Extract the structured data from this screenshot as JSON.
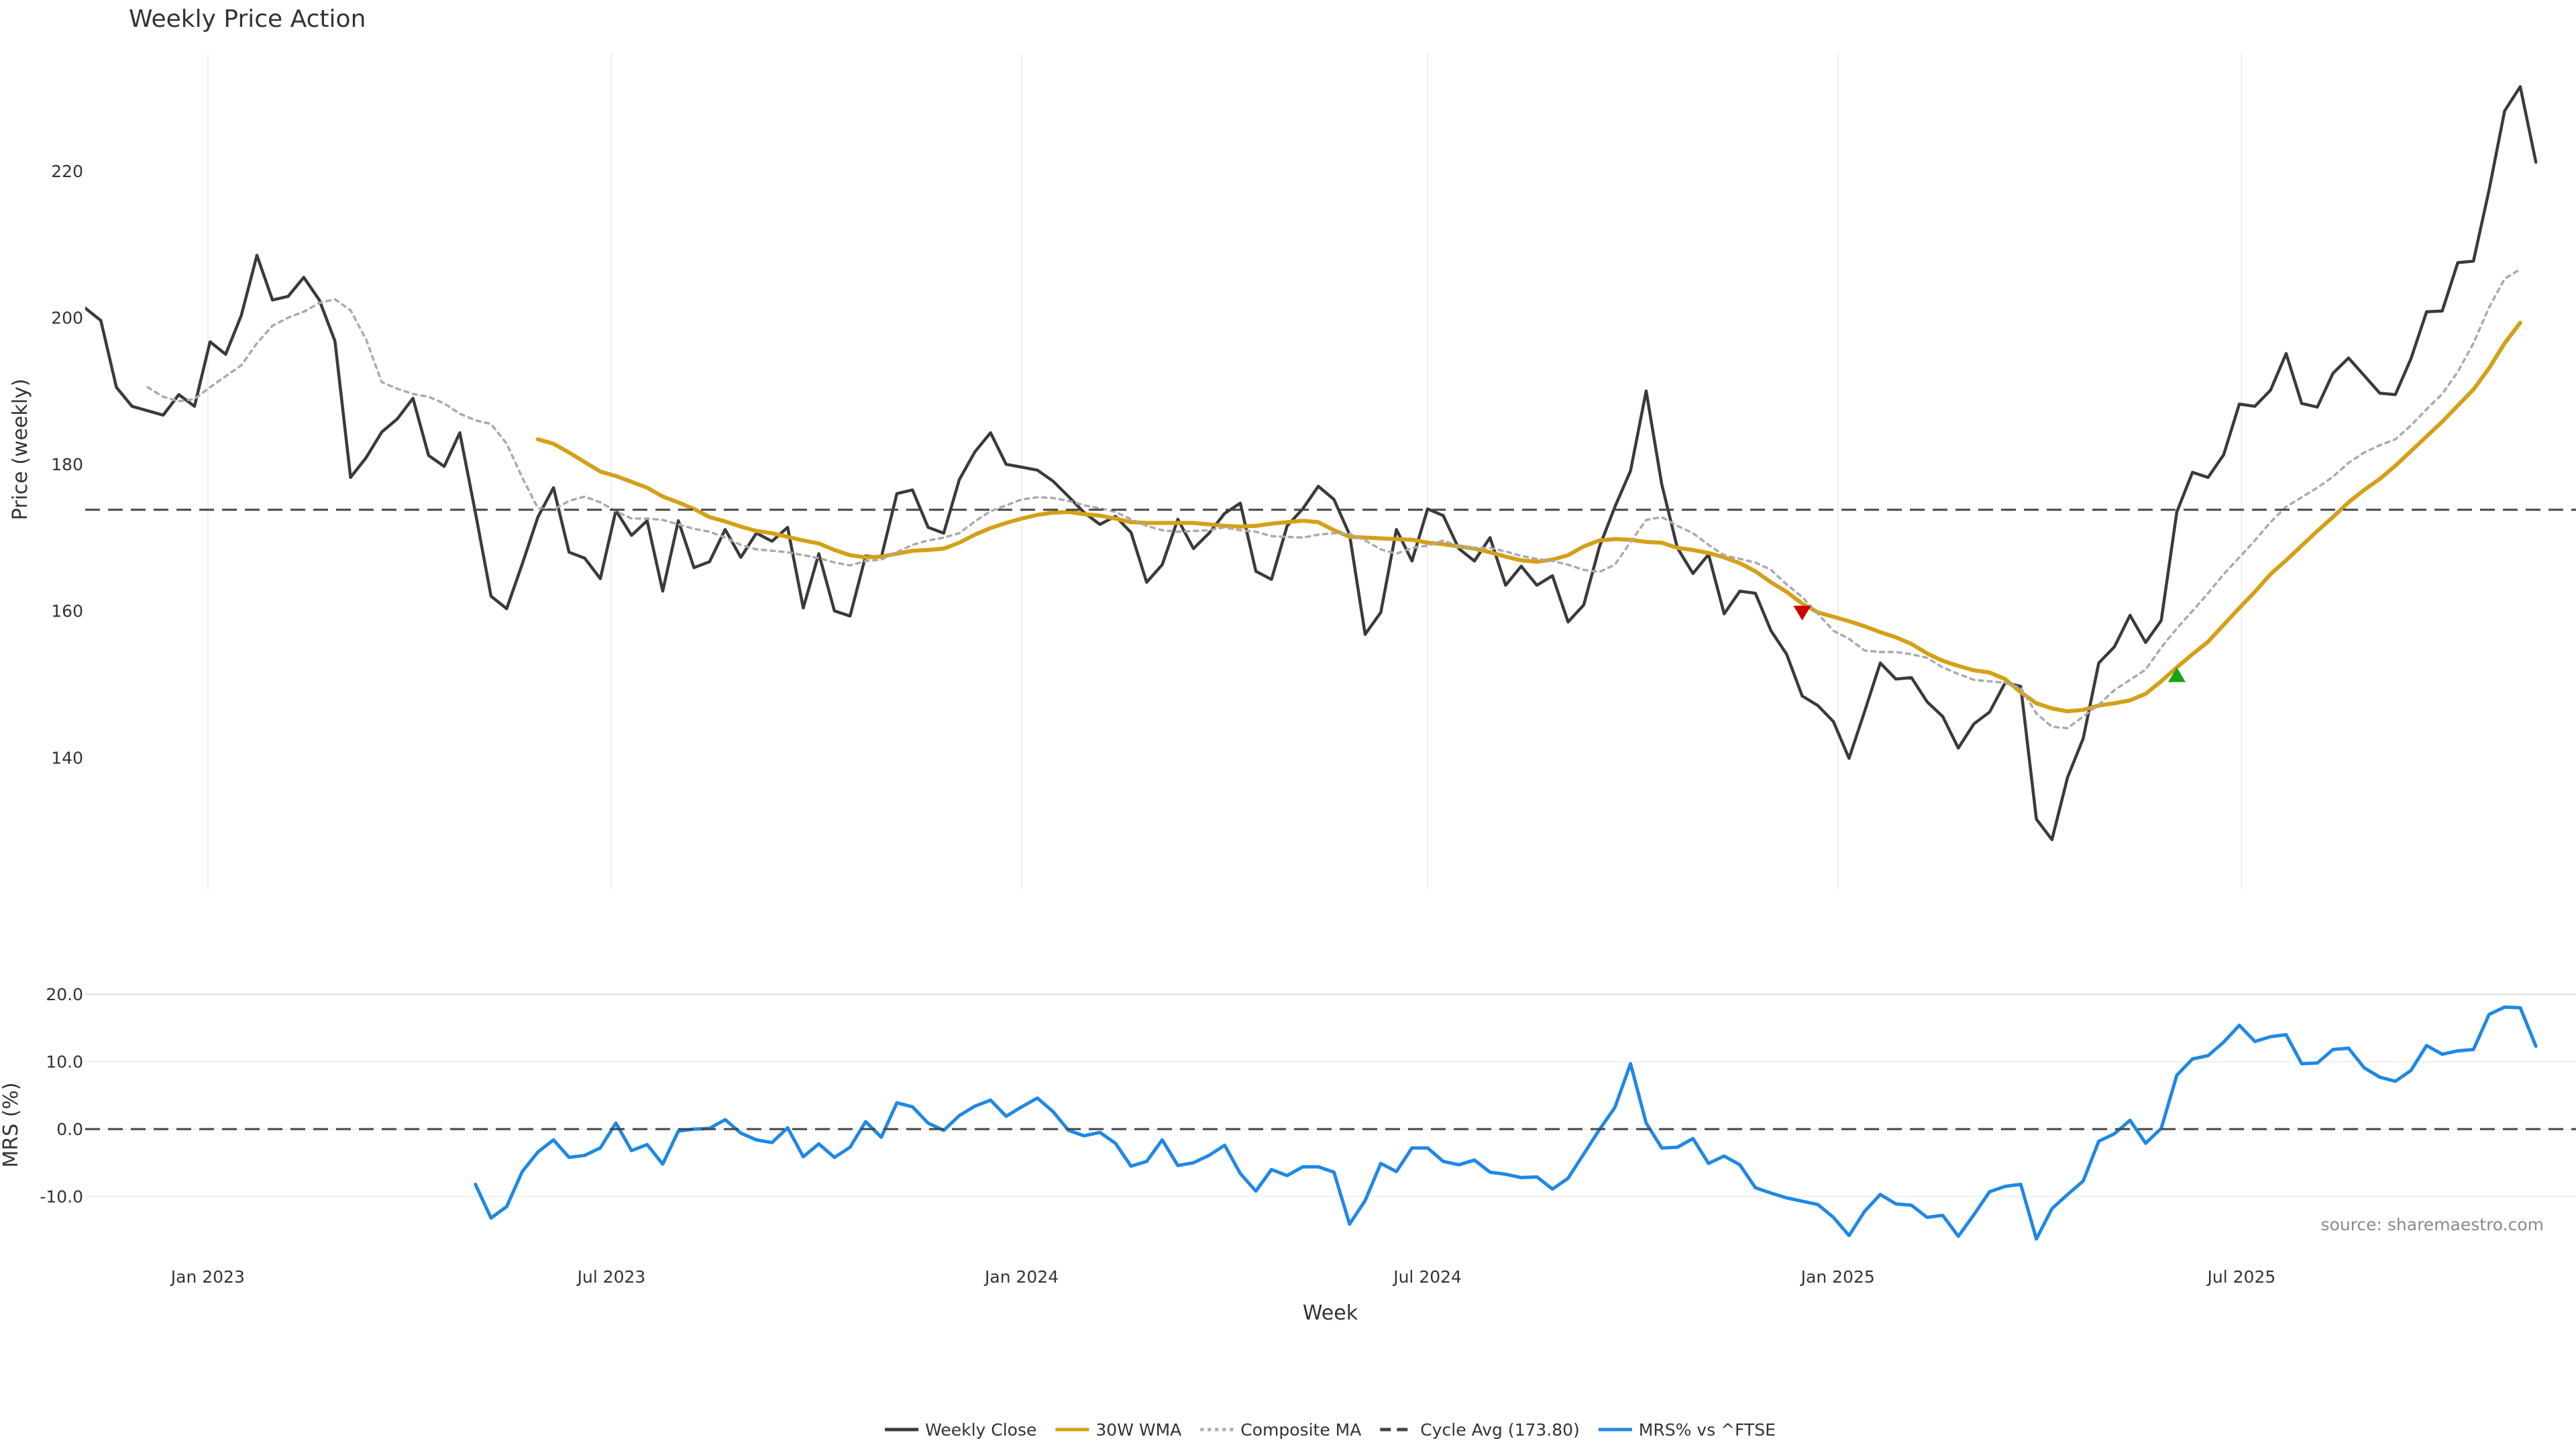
{
  "chart_data": [
    {
      "type": "line",
      "title": "Weekly Price Action",
      "xlabel": "Week",
      "ylabel": "Price (weekly)",
      "xlim": [
        "2022-11-07",
        "2025-11-28"
      ],
      "ylim": [
        122,
        236
      ],
      "yticks": [
        140,
        160,
        180,
        200,
        220
      ],
      "xticks": [
        {
          "date": "2023-01-01",
          "label": "Jan 2023"
        },
        {
          "date": "2023-07-01",
          "label": "Jul 2023"
        },
        {
          "date": "2024-01-01",
          "label": "Jan 2024"
        },
        {
          "date": "2024-07-01",
          "label": "Jul 2024"
        },
        {
          "date": "2025-01-01",
          "label": "Jan 2025"
        },
        {
          "date": "2025-07-01",
          "label": "Jul 2025"
        }
      ],
      "grid": "vertical",
      "start_date": "2022-11-07",
      "interval_days": 7,
      "series": [
        {
          "name": "Weekly Close",
          "color": "#3a3a3a",
          "style": "solid",
          "values": [
            201.3,
            199.6,
            190.5,
            187.9,
            187.3,
            186.7,
            189.5,
            187.9,
            196.7,
            195.0,
            200.3,
            208.5,
            202.4,
            202.9,
            205.5,
            202.4,
            196.8,
            178.2,
            180.9,
            184.4,
            186.2,
            189.0,
            181.2,
            179.7,
            184.3,
            173.4,
            162.0,
            160.3,
            166.4,
            172.8,
            176.8,
            168.0,
            167.2,
            164.4,
            173.7,
            170.3,
            172.3,
            162.7,
            172.3,
            165.9,
            166.7,
            171.1,
            167.3,
            170.6,
            169.5,
            171.4,
            160.4,
            167.8,
            160.0,
            159.3,
            167.5,
            167.3,
            176.0,
            176.5,
            171.4,
            170.6,
            177.9,
            181.7,
            184.3,
            180.0,
            179.6,
            179.2,
            177.7,
            175.6,
            173.4,
            171.8,
            172.9,
            170.7,
            163.9,
            166.3,
            172.5,
            168.5,
            170.6,
            173.3,
            174.7,
            165.4,
            164.3,
            171.6,
            173.9,
            177.0,
            175.2,
            170.4,
            156.8,
            159.8,
            171.1,
            166.8,
            173.9,
            173.0,
            168.5,
            166.8,
            170.0,
            163.5,
            166.1,
            163.5,
            164.8,
            158.5,
            160.8,
            168.7,
            174.2,
            179.1,
            190.0,
            177.3,
            168.6,
            165.1,
            167.7,
            159.6,
            162.7,
            162.4,
            157.3,
            154.1,
            148.4,
            147.1,
            144.9,
            139.9,
            146.3,
            152.9,
            150.7,
            150.9,
            147.6,
            145.6,
            141.3,
            144.6,
            146.2,
            150.2,
            149.7,
            131.6,
            128.8,
            137.3,
            142.6,
            152.9,
            155.1,
            159.4,
            155.7,
            158.7,
            173.5,
            178.9,
            178.2,
            181.3,
            188.2,
            187.9,
            190.1,
            195.1,
            188.3,
            187.8,
            192.4,
            194.5,
            192.1,
            189.7,
            189.5,
            194.4,
            200.8,
            200.9,
            207.5,
            207.7,
            217.4,
            228.2,
            231.5,
            221.2
          ]
        },
        {
          "name": "30W WMA",
          "color": "#d4a017",
          "style": "solid",
          "start_index": 29,
          "values": [
            183.4,
            182.8,
            181.6,
            180.3,
            179.0,
            178.4,
            177.6,
            176.8,
            175.6,
            174.8,
            173.9,
            172.8,
            172.2,
            171.5,
            170.9,
            170.6,
            170.1,
            169.6,
            169.2,
            168.3,
            167.6,
            167.3,
            167.4,
            167.8,
            168.2,
            168.3,
            168.5,
            169.3,
            170.4,
            171.3,
            172.0,
            172.6,
            173.1,
            173.4,
            173.5,
            173.2,
            173.0,
            172.6,
            172.1,
            172.0,
            172.0,
            172.0,
            172.0,
            171.8,
            171.6,
            171.5,
            171.6,
            171.9,
            172.1,
            172.3,
            172.1,
            171.0,
            170.1,
            170.0,
            169.9,
            169.8,
            169.7,
            169.3,
            169.1,
            168.8,
            168.5,
            168.0,
            167.4,
            166.9,
            166.7,
            167.0,
            167.6,
            168.8,
            169.6,
            169.8,
            169.7,
            169.4,
            169.3,
            168.6,
            168.3,
            167.9,
            167.3,
            166.5,
            165.4,
            163.9,
            162.6,
            161.0,
            159.8,
            159.2,
            158.6,
            157.9,
            157.1,
            156.4,
            155.5,
            154.2,
            153.2,
            152.5,
            151.9,
            151.6,
            150.7,
            148.9,
            147.4,
            146.7,
            146.3,
            146.5,
            147.1,
            147.4,
            147.8,
            148.7,
            150.4,
            152.3,
            154.1,
            155.8,
            158.1,
            160.4,
            162.6,
            165.0,
            166.9,
            168.9,
            170.9,
            172.8,
            174.8,
            176.5,
            178.0,
            179.8,
            181.8,
            183.8,
            185.8,
            188.0,
            190.2,
            193.1,
            196.5,
            199.3
          ]
        },
        {
          "name": "Composite MA",
          "color": "#aaaaaa",
          "style": "dotted",
          "start_index": 4,
          "values": [
            190.5,
            189.2,
            188.6,
            188.9,
            190.5,
            192.0,
            193.5,
            196.5,
            198.9,
            200.0,
            200.8,
            202.0,
            202.5,
            201.0,
            197.0,
            191.2,
            190.3,
            189.6,
            189.2,
            188.3,
            186.9,
            186.0,
            185.5,
            182.8,
            178.2,
            174.0,
            173.8,
            175.0,
            175.6,
            174.8,
            173.6,
            172.6,
            172.6,
            172.4,
            171.8,
            171.2,
            170.8,
            170.0,
            169.0,
            168.4,
            168.2,
            168.0,
            167.6,
            167.2,
            166.6,
            166.2,
            166.8,
            167.0,
            168.0,
            169.0,
            169.6,
            170.0,
            170.6,
            172.2,
            173.6,
            174.4,
            175.2,
            175.5,
            175.4,
            175.0,
            174.4,
            174.0,
            173.5,
            172.5,
            171.6,
            171.0,
            170.8,
            170.9,
            171.0,
            171.4,
            171.0,
            170.8,
            170.2,
            170.1,
            170.0,
            170.4,
            170.6,
            170.5,
            169.6,
            168.4,
            167.8,
            168.6,
            168.9,
            169.6,
            168.8,
            168.6,
            168.6,
            168.1,
            167.5,
            167.1,
            166.8,
            166.3,
            165.6,
            165.3,
            166.3,
            169.4,
            172.4,
            172.8,
            171.6,
            170.6,
            169.0,
            167.6,
            167.1,
            166.6,
            165.6,
            163.6,
            161.9,
            159.6,
            157.3,
            156.2,
            154.6,
            154.4,
            154.4,
            154.1,
            153.6,
            152.3,
            151.4,
            150.6,
            150.4,
            150.2,
            149.5,
            146.0,
            144.2,
            144.0,
            145.6,
            147.2,
            149.2,
            150.6,
            152.0,
            155.0,
            157.6,
            160.0,
            162.4,
            165.0,
            167.3,
            169.6,
            172.1,
            174.2,
            175.5,
            176.8,
            178.3,
            180.2,
            181.6,
            182.6,
            183.4,
            185.3,
            187.5,
            189.6,
            192.6,
            196.5,
            201.4,
            205.3,
            206.6
          ]
        },
        {
          "name": "Cycle Avg (173.80)",
          "color": "#444444",
          "style": "dashed",
          "value": 173.8
        }
      ],
      "annotations": [
        {
          "type": "marker",
          "shape": "triangle-down",
          "color": "#cc0000",
          "index": 110,
          "y": 159.7
        },
        {
          "type": "marker",
          "shape": "triangle-up",
          "color": "#16a316",
          "index": 134,
          "y": 151.3
        }
      ]
    },
    {
      "type": "line",
      "title": "",
      "xlabel": "Week",
      "ylabel": "MRS (%)",
      "ylim": [
        -19,
        23
      ],
      "yticks": [
        -10.0,
        0.0,
        10.0,
        20.0
      ],
      "ytick_labels": [
        "-10.0",
        "0.0",
        "10.0",
        "20.0"
      ],
      "series": [
        {
          "name": "MRS% vs ^FTSE",
          "color": "#1e88e5",
          "style": "solid",
          "start_index": 25,
          "values": [
            -8.2,
            -13.2,
            -11.5,
            -6.3,
            -3.4,
            -1.6,
            -4.2,
            -3.9,
            -2.8,
            0.9,
            -3.2,
            -2.3,
            -5.2,
            -0.3,
            0.0,
            0.1,
            1.4,
            -0.6,
            -1.6,
            -2.0,
            0.2,
            -4.1,
            -2.2,
            -4.2,
            -2.7,
            1.1,
            -1.2,
            3.9,
            3.3,
            0.9,
            -0.2,
            2.0,
            3.4,
            4.3,
            1.9,
            3.3,
            4.6,
            2.6,
            -0.2,
            -1.0,
            -0.5,
            -2.1,
            -5.5,
            -4.8,
            -1.6,
            -5.4,
            -5.0,
            -3.9,
            -2.4,
            -6.6,
            -9.2,
            -6.0,
            -6.9,
            -5.6,
            -5.6,
            -6.4,
            -14.1,
            -10.6,
            -5.1,
            -6.3,
            -2.8,
            -2.8,
            -4.8,
            -5.3,
            -4.6,
            -6.4,
            -6.7,
            -7.2,
            -7.1,
            -8.9,
            -7.3,
            -3.7,
            -0.1,
            3.2,
            9.7,
            0.9,
            -2.8,
            -2.7,
            -1.4,
            -5.1,
            -4.0,
            -5.3,
            -8.7,
            -9.5,
            -10.2,
            -10.7,
            -11.2,
            -13.1,
            -15.8,
            -12.2,
            -9.7,
            -11.1,
            -11.3,
            -13.1,
            -12.8,
            -15.9,
            -12.7,
            -9.3,
            -8.5,
            -8.2,
            -16.3,
            -11.8,
            -9.7,
            -7.7,
            -1.8,
            -0.7,
            1.3,
            -2.1,
            0.1,
            8.0,
            10.4,
            10.9,
            12.9,
            15.4,
            13.0,
            13.7,
            14.0,
            9.7,
            9.8,
            11.8,
            12.0,
            9.1,
            7.7,
            7.1,
            8.7,
            12.4,
            11.1,
            11.6,
            11.8,
            17.0,
            18.1,
            18.0,
            12.3
          ]
        },
        {
          "name": "",
          "color": "#444444",
          "style": "dashed",
          "value": 0
        }
      ]
    }
  ],
  "legend": {
    "position": "bottom-center",
    "entries": [
      {
        "label": "Weekly Close",
        "color": "#3a3a3a",
        "style": "solid"
      },
      {
        "label": "30W WMA",
        "color": "#d4a017",
        "style": "solid"
      },
      {
        "label": "Composite MA",
        "color": "#aaaaaa",
        "style": "dotted"
      },
      {
        "label": "Cycle Avg (173.80)",
        "color": "#444444",
        "style": "dashed"
      },
      {
        "label": "MRS% vs ^FTSE",
        "color": "#1e88e5",
        "style": "solid"
      }
    ]
  },
  "source_note": "source: sharemaestro.com"
}
